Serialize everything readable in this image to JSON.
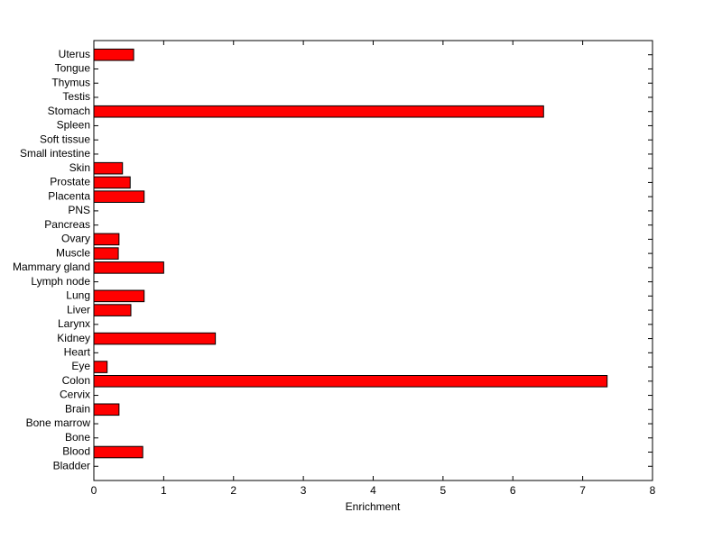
{
  "chart_data": {
    "type": "barh",
    "x_label": "Enrichment",
    "categories": [
      "Bladder",
      "Blood",
      "Bone",
      "Bone marrow",
      "Brain",
      "Cervix",
      "Colon",
      "Eye",
      "Heart",
      "Kidney",
      "Larynx",
      "Liver",
      "Lung",
      "Lymph node",
      "Mammary gland",
      "Muscle",
      "Ovary",
      "Pancreas",
      "PNS",
      "Placenta",
      "Prostate",
      "Skin",
      "Small intestine",
      "Soft tissue",
      "Spleen",
      "Stomach",
      "Testis",
      "Thymus",
      "Tongue",
      "Uterus"
    ],
    "values": [
      0,
      0.7,
      0,
      0,
      0.36,
      0,
      7.35,
      0.19,
      0,
      1.74,
      0,
      0.53,
      0.72,
      0,
      1.0,
      0.35,
      0.36,
      0,
      0,
      0.72,
      0.52,
      0.41,
      0,
      0,
      0,
      6.44,
      0,
      0,
      0,
      0.57
    ],
    "color": "#ff0000",
    "xlim": [
      0,
      8
    ],
    "xticks": [
      0,
      1,
      2,
      3,
      4,
      5,
      6,
      7,
      8
    ]
  }
}
